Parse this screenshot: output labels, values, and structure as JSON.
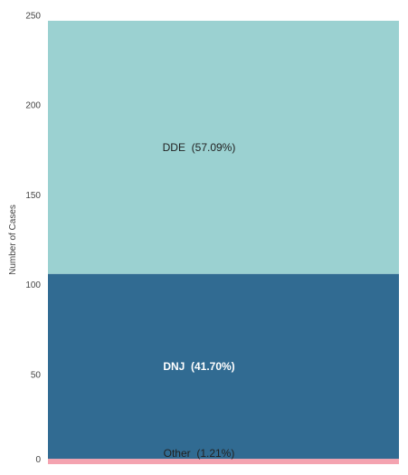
{
  "chart_data": {
    "type": "bar",
    "stacked": true,
    "ylabel": "Number of Cases",
    "ylim": [
      0,
      250
    ],
    "yticks": [
      "0",
      "50",
      "100",
      "150",
      "200",
      "250"
    ],
    "grid": false,
    "series": [
      {
        "name": "Other",
        "value": 3,
        "label": "Other  (1.21%)",
        "color": "#f4a3b0",
        "label_color": "#222222",
        "label_bold": false
      },
      {
        "name": "DNJ",
        "value": 103,
        "label": "DNJ  (41.70%)",
        "color": "#316b92",
        "label_color": "#ffffff",
        "label_bold": true
      },
      {
        "name": "DDE",
        "value": 141,
        "label": "DDE  (57.09%)",
        "color": "#9bd1d1",
        "label_color": "#222222",
        "label_bold": false
      }
    ]
  }
}
